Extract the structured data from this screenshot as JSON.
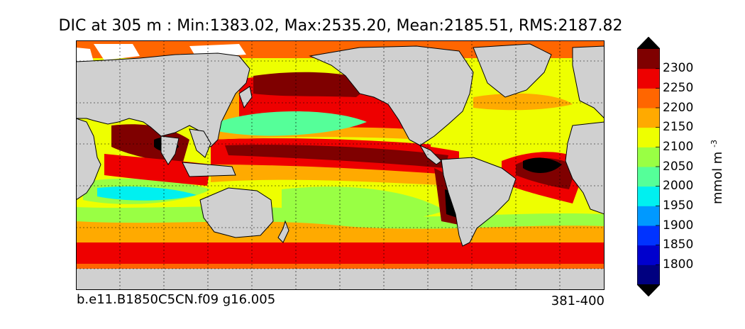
{
  "title": "DIC at 305 m : Min:1383.02, Max:2535.20, Mean:2185.51, RMS:2187.82",
  "footer": {
    "left": "b.e11.B1850C5CN.f09 g16.005",
    "right": "381-400"
  },
  "colorbar": {
    "unit": "mmol m",
    "unit_exponent": "-3",
    "levels": [
      "1800",
      "1850",
      "1900",
      "1950",
      "2000",
      "2050",
      "2100",
      "2150",
      "2200",
      "2250",
      "2300"
    ],
    "colors": {
      "under": "#000000",
      "bands": [
        "#000080",
        "#0000cd",
        "#0033ff",
        "#0099ff",
        "#00f0f0",
        "#55ff99",
        "#99ff44",
        "#eeff00",
        "#ffaa00",
        "#ff6600",
        "#ee0000",
        "#7f0000"
      ],
      "over": "#000000"
    }
  },
  "map_colors": {
    "land": "#d0d0d0",
    "no_data": "#ffffff",
    "coast": "#000000",
    "grid": "#000000"
  }
}
